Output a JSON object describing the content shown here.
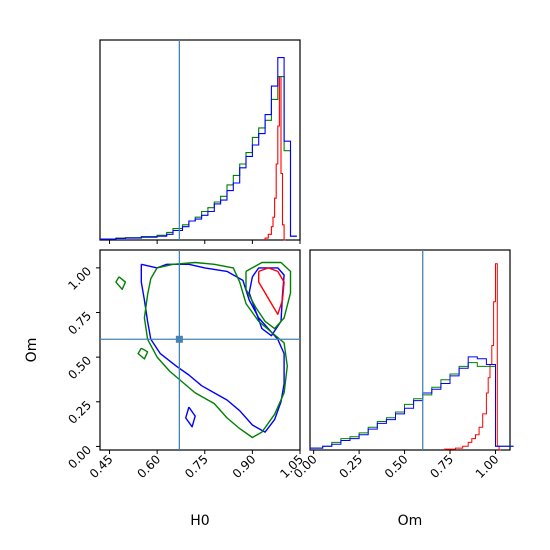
{
  "chart_data": {
    "type": "corner",
    "params": [
      "H0",
      "Om"
    ],
    "truth": {
      "H0": 0.67,
      "Om": 0.6
    },
    "colors": {
      "red": "#ff0000",
      "blue": "#0000ff",
      "green": "#008000",
      "truth": "#4682b4"
    },
    "panels": [
      {
        "id": "h0-marginal",
        "type": "step",
        "xlim": [
          0.42,
          1.05
        ],
        "truth": 0.67,
        "series": [
          {
            "color": "red",
            "x": [
              0.94,
              0.95,
              0.96,
              0.965,
              0.97,
              0.975,
              0.98,
              0.985,
              0.99,
              0.995,
              1.0
            ],
            "y": [
              0.01,
              0.03,
              0.07,
              0.12,
              0.22,
              0.4,
              0.6,
              0.86,
              0.35,
              0.08,
              0.0
            ]
          },
          {
            "color": "green",
            "x": [
              0.42,
              0.47,
              0.5,
              0.55,
              0.6,
              0.63,
              0.65,
              0.68,
              0.7,
              0.72,
              0.74,
              0.76,
              0.78,
              0.8,
              0.82,
              0.84,
              0.86,
              0.88,
              0.9,
              0.92,
              0.94,
              0.96,
              0.98,
              1.0,
              1.02
            ],
            "y": [
              0.005,
              0.01,
              0.012,
              0.018,
              0.025,
              0.04,
              0.06,
              0.08,
              0.1,
              0.12,
              0.15,
              0.17,
              0.2,
              0.23,
              0.29,
              0.34,
              0.4,
              0.46,
              0.54,
              0.59,
              0.63,
              0.74,
              0.86,
              0.47,
              0.02
            ]
          },
          {
            "color": "blue",
            "x": [
              0.42,
              0.47,
              0.5,
              0.55,
              0.6,
              0.63,
              0.65,
              0.68,
              0.7,
              0.72,
              0.74,
              0.76,
              0.78,
              0.8,
              0.82,
              0.84,
              0.86,
              0.88,
              0.9,
              0.92,
              0.94,
              0.96,
              0.98,
              1.0,
              1.02
            ],
            "y": [
              0.005,
              0.008,
              0.01,
              0.015,
              0.02,
              0.03,
              0.05,
              0.07,
              0.1,
              0.11,
              0.13,
              0.15,
              0.19,
              0.21,
              0.26,
              0.3,
              0.38,
              0.44,
              0.5,
              0.56,
              0.66,
              0.81,
              0.96,
              0.52,
              0.02
            ]
          }
        ]
      },
      {
        "id": "om-marginal",
        "type": "step",
        "xlim": [
          -0.02,
          1.08
        ],
        "xticks": [
          0.0,
          0.25,
          0.5,
          0.75,
          1.0
        ],
        "tick_labels": [
          "0.00",
          "0.25",
          "0.50",
          "0.75",
          "1.00"
        ],
        "xlabel": "Om",
        "truth": 0.6,
        "series": [
          {
            "color": "red",
            "x": [
              0.72,
              0.78,
              0.82,
              0.85,
              0.87,
              0.89,
              0.91,
              0.93,
              0.95,
              0.96,
              0.97,
              0.98,
              0.99,
              1.0,
              1.01,
              1.02
            ],
            "y": [
              0.005,
              0.01,
              0.02,
              0.04,
              0.06,
              0.08,
              0.12,
              0.19,
              0.3,
              0.38,
              0.45,
              0.55,
              0.78,
              0.98,
              0.02,
              0.0
            ]
          },
          {
            "color": "green",
            "x": [
              -0.02,
              0.05,
              0.1,
              0.15,
              0.2,
              0.25,
              0.3,
              0.35,
              0.4,
              0.45,
              0.5,
              0.55,
              0.6,
              0.65,
              0.7,
              0.75,
              0.8,
              0.85,
              0.9,
              0.95,
              1.0,
              1.05
            ],
            "y": [
              0.01,
              0.02,
              0.04,
              0.06,
              0.07,
              0.09,
              0.12,
              0.15,
              0.17,
              0.2,
              0.24,
              0.27,
              0.29,
              0.33,
              0.37,
              0.4,
              0.44,
              0.46,
              0.44,
              0.44,
              0.02,
              0.02
            ]
          },
          {
            "color": "blue",
            "x": [
              -0.02,
              0.05,
              0.1,
              0.15,
              0.2,
              0.25,
              0.3,
              0.35,
              0.4,
              0.45,
              0.5,
              0.55,
              0.6,
              0.65,
              0.7,
              0.75,
              0.8,
              0.85,
              0.9,
              0.95,
              1.0,
              1.05
            ],
            "y": [
              0.01,
              0.02,
              0.03,
              0.05,
              0.06,
              0.08,
              0.11,
              0.14,
              0.16,
              0.19,
              0.22,
              0.26,
              0.3,
              0.32,
              0.35,
              0.39,
              0.43,
              0.49,
              0.48,
              0.45,
              0.02,
              0.02
            ]
          }
        ]
      },
      {
        "id": "joint",
        "type": "contour",
        "xlim": [
          0.42,
          1.05
        ],
        "ylim": [
          -0.02,
          1.1
        ],
        "xticks": [
          0.45,
          0.6,
          0.75,
          0.9,
          1.05
        ],
        "xtick_labels": [
          "0.45",
          "0.60",
          "0.75",
          "0.90",
          "1.05"
        ],
        "yticks": [
          0.0,
          0.25,
          0.5,
          0.75,
          1.0
        ],
        "ytick_labels": [
          "0.00",
          "0.25",
          "0.50",
          "0.75",
          "1.00"
        ],
        "xlabel": "H0",
        "ylabel": "Om",
        "truth": {
          "x": 0.67,
          "y": 0.6
        },
        "contours": [
          {
            "color": "blue",
            "points": [
              [
                0.55,
                1.02
              ],
              [
                0.6,
                1.0
              ],
              [
                0.63,
                1.02
              ],
              [
                0.7,
                1.02
              ],
              [
                0.75,
                1.0
              ],
              [
                0.82,
                0.98
              ],
              [
                0.87,
                0.93
              ],
              [
                0.89,
                0.82
              ],
              [
                0.92,
                0.72
              ],
              [
                0.95,
                0.66
              ],
              [
                0.98,
                0.6
              ],
              [
                1.0,
                0.52
              ],
              [
                1.0,
                0.35
              ],
              [
                0.99,
                0.25
              ],
              [
                0.97,
                0.15
              ],
              [
                0.94,
                0.08
              ],
              [
                0.9,
                0.12
              ],
              [
                0.86,
                0.2
              ],
              [
                0.82,
                0.26
              ],
              [
                0.78,
                0.3
              ],
              [
                0.74,
                0.34
              ],
              [
                0.7,
                0.4
              ],
              [
                0.66,
                0.45
              ],
              [
                0.61,
                0.52
              ],
              [
                0.58,
                0.6
              ],
              [
                0.57,
                0.7
              ],
              [
                0.56,
                0.82
              ],
              [
                0.55,
                0.92
              ],
              [
                0.55,
                1.02
              ]
            ]
          },
          {
            "color": "blue",
            "points": [
              [
                0.7,
                0.22
              ],
              [
                0.72,
                0.17
              ],
              [
                0.71,
                0.11
              ],
              [
                0.69,
                0.16
              ],
              [
                0.7,
                0.22
              ]
            ]
          },
          {
            "color": "blue",
            "points": [
              [
                0.9,
                0.95
              ],
              [
                0.92,
                1.0
              ],
              [
                0.98,
                1.0
              ],
              [
                1.0,
                0.96
              ],
              [
                0.995,
                0.85
              ],
              [
                0.99,
                0.7
              ],
              [
                0.96,
                0.62
              ],
              [
                0.93,
                0.66
              ],
              [
                0.91,
                0.76
              ],
              [
                0.89,
                0.86
              ],
              [
                0.9,
                0.95
              ]
            ]
          },
          {
            "color": "green",
            "points": [
              [
                0.6,
                1.0
              ],
              [
                0.65,
                1.02
              ],
              [
                0.72,
                1.03
              ],
              [
                0.78,
                1.02
              ],
              [
                0.84,
                1.0
              ],
              [
                0.86,
                0.92
              ],
              [
                0.88,
                0.8
              ],
              [
                0.92,
                0.7
              ],
              [
                0.96,
                0.64
              ],
              [
                1.0,
                0.58
              ],
              [
                1.01,
                0.45
              ],
              [
                1.0,
                0.3
              ],
              [
                0.97,
                0.18
              ],
              [
                0.93,
                0.08
              ],
              [
                0.9,
                0.05
              ],
              [
                0.86,
                0.1
              ],
              [
                0.82,
                0.16
              ],
              [
                0.78,
                0.24
              ],
              [
                0.72,
                0.3
              ],
              [
                0.68,
                0.36
              ],
              [
                0.64,
                0.42
              ],
              [
                0.6,
                0.5
              ],
              [
                0.57,
                0.6
              ],
              [
                0.56,
                0.72
              ],
              [
                0.57,
                0.85
              ],
              [
                0.58,
                0.94
              ],
              [
                0.6,
                1.0
              ]
            ]
          },
          {
            "color": "green",
            "points": [
              [
                0.88,
                0.98
              ],
              [
                0.93,
                1.03
              ],
              [
                0.99,
                1.03
              ],
              [
                1.02,
                0.98
              ],
              [
                1.02,
                0.86
              ],
              [
                1.0,
                0.72
              ],
              [
                0.97,
                0.66
              ],
              [
                0.94,
                0.7
              ],
              [
                0.91,
                0.78
              ],
              [
                0.88,
                0.88
              ],
              [
                0.88,
                0.98
              ]
            ]
          },
          {
            "color": "green",
            "points": [
              [
                0.48,
                0.95
              ],
              [
                0.5,
                0.92
              ],
              [
                0.49,
                0.88
              ],
              [
                0.47,
                0.92
              ],
              [
                0.48,
                0.95
              ]
            ]
          },
          {
            "color": "green",
            "points": [
              [
                0.55,
                0.55
              ],
              [
                0.57,
                0.53
              ],
              [
                0.56,
                0.49
              ],
              [
                0.54,
                0.52
              ],
              [
                0.55,
                0.55
              ]
            ]
          },
          {
            "color": "red",
            "points": [
              [
                0.92,
                0.98
              ],
              [
                0.95,
                1.0
              ],
              [
                0.98,
                0.98
              ],
              [
                1.0,
                0.92
              ],
              [
                0.995,
                0.82
              ],
              [
                0.98,
                0.74
              ],
              [
                0.96,
                0.8
              ],
              [
                0.94,
                0.86
              ],
              [
                0.92,
                0.92
              ],
              [
                0.92,
                0.98
              ]
            ]
          }
        ]
      }
    ]
  }
}
